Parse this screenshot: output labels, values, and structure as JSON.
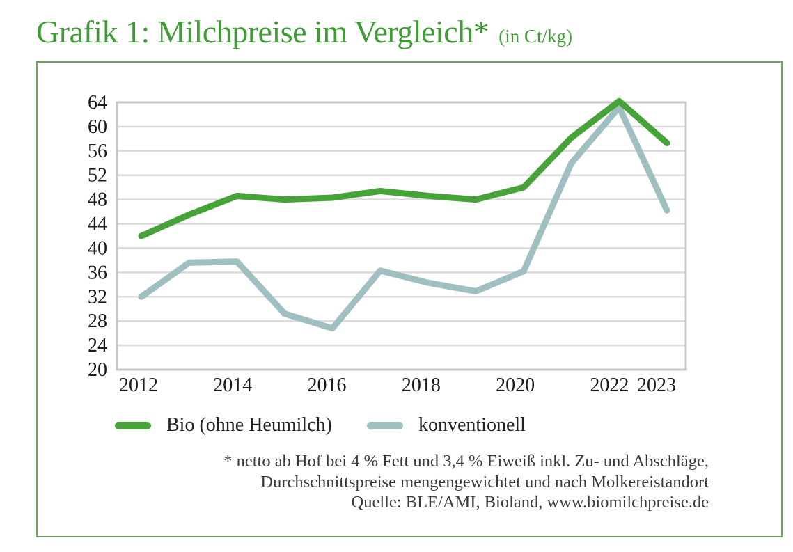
{
  "header": {
    "title": "Grafik 1: Milchpreise im Vergleich*",
    "unit": "(in Ct/kg)"
  },
  "chart_data": {
    "type": "line",
    "x": [
      2012,
      2013,
      2014,
      2015,
      2016,
      2017,
      2018,
      2019,
      2020,
      2021,
      2022,
      2023
    ],
    "series": [
      {
        "name": "Bio (ohne Heumilch)",
        "color": "#47a23a",
        "values": [
          42.0,
          45.5,
          48.6,
          48.0,
          48.3,
          49.4,
          48.6,
          48.0,
          50.0,
          58.2,
          64.2,
          57.3
        ]
      },
      {
        "name": "konventionell",
        "color": "#a0bfc0",
        "values": [
          32.0,
          37.6,
          37.8,
          29.2,
          26.8,
          36.3,
          34.3,
          32.9,
          36.2,
          54.0,
          63.2,
          46.2
        ]
      }
    ],
    "ylim": [
      20,
      64
    ],
    "ytick_step": 4,
    "xticks": [
      2012,
      2014,
      2016,
      2018,
      2020,
      2022,
      2023
    ],
    "grid": "horizontal",
    "legend_position": "bottom",
    "title": "Grafik 1: Milchpreise im Vergleich* (in Ct/kg)",
    "xlabel": "",
    "ylabel": "Ct/kg"
  },
  "colors": {
    "title_green": "#3f9c35",
    "panel_border_green": "#69a75c",
    "bio_line": "#47a23a",
    "konventionell_line": "#a0bfc0",
    "gridline": "#dadada",
    "plot_border": "#c7c7c7",
    "tick_text": "#1b1b1b"
  },
  "footnote": {
    "lines": [
      "* netto ab Hof bei 4 % Fett und 3,4 % Eiweiß inkl. Zu- und Abschläge,",
      "Durchschnittspreise mengengewichtet und nach Molkereistandort",
      "Quelle: BLE/AMI, Bioland, www.biomilchpreise.de"
    ]
  }
}
